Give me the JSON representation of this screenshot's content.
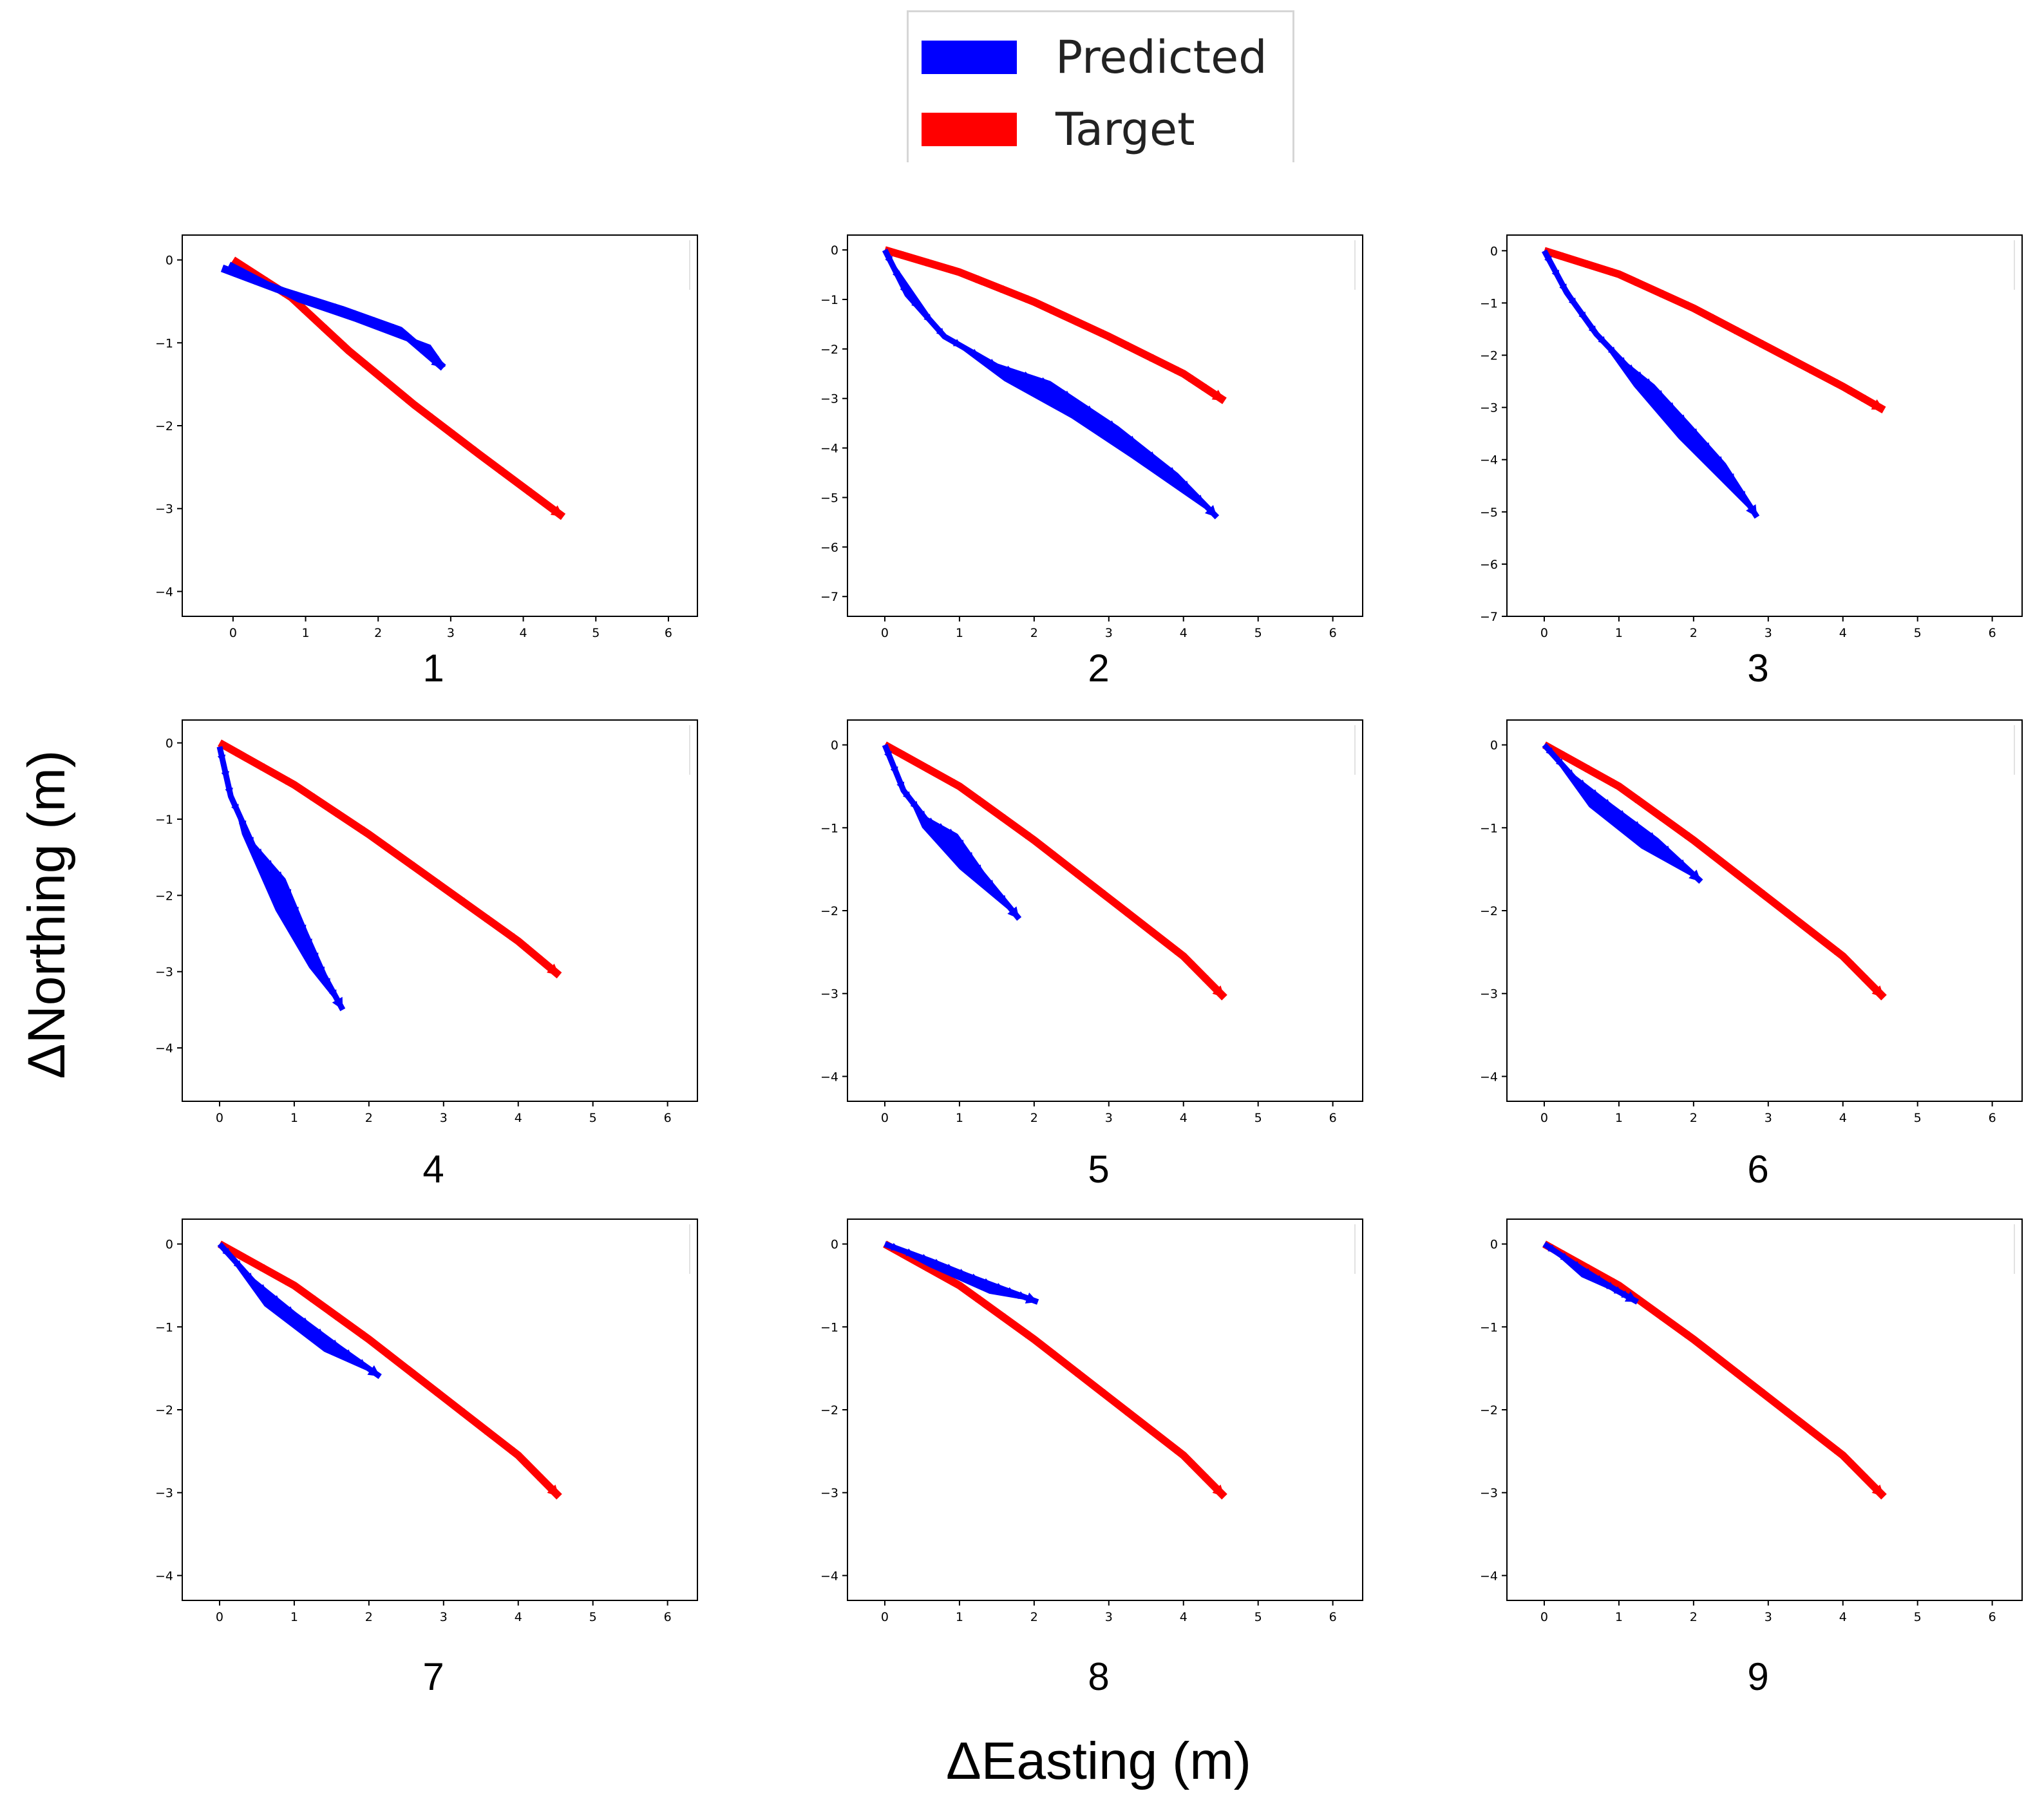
{
  "legend": {
    "items": [
      {
        "label": "Predicted",
        "color": "#0000ff"
      },
      {
        "label": "Target",
        "color": "#ff0000"
      }
    ]
  },
  "figure": {
    "xlabel": "ΔEasting (m)",
    "ylabel": "ΔNorthing (m)"
  },
  "chart_data": [
    {
      "type": "quiver",
      "panel_label": "1",
      "xlim": [
        -0.7,
        6.4
      ],
      "ylim": [
        -4.3,
        0.3
      ],
      "xticks": [
        0,
        1,
        2,
        3,
        4,
        5,
        6
      ],
      "yticks": [
        0,
        -1,
        -2,
        -3,
        -4
      ],
      "series": [
        {
          "name": "Target",
          "color": "#ff0000",
          "points": [
            [
              0,
              0
            ],
            [
              0.8,
              -0.45
            ],
            [
              1.6,
              -1.1
            ],
            [
              2.5,
              -1.75
            ],
            [
              3.4,
              -2.35
            ],
            [
              4.55,
              -3.1
            ]
          ]
        },
        {
          "name": "Predicted",
          "color": "#0000ff",
          "points": [
            [
              -0.15,
              -0.1
            ],
            [
              0.7,
              -0.38
            ],
            [
              1.5,
              -0.6
            ],
            [
              2.3,
              -0.85
            ],
            [
              2.9,
              -1.3
            ]
          ],
          "return_points": [
            [
              2.7,
              -1.05
            ],
            [
              1.7,
              -0.72
            ],
            [
              0.9,
              -0.48
            ],
            [
              -0.05,
              -0.05
            ]
          ]
        }
      ]
    },
    {
      "type": "quiver",
      "panel_label": "2",
      "xlim": [
        -0.5,
        6.4
      ],
      "ylim": [
        -7.4,
        0.3
      ],
      "xticks": [
        0,
        1,
        2,
        3,
        4,
        5,
        6
      ],
      "yticks": [
        0,
        -1,
        -2,
        -3,
        -4,
        -5,
        -6,
        -7
      ],
      "series": [
        {
          "name": "Target",
          "color": "#ff0000",
          "points": [
            [
              0,
              0
            ],
            [
              1,
              -0.45
            ],
            [
              2,
              -1.05
            ],
            [
              3,
              -1.75
            ],
            [
              4,
              -2.5
            ],
            [
              4.55,
              -3.05
            ]
          ]
        },
        {
          "name": "Predicted",
          "color": "#0000ff",
          "points": [
            [
              0,
              0
            ],
            [
              0.3,
              -0.9
            ],
            [
              0.8,
              -1.75
            ],
            [
              1.5,
              -2.35
            ],
            [
              2.2,
              -2.7
            ],
            [
              3.1,
              -3.6
            ],
            [
              3.9,
              -4.55
            ],
            [
              4.45,
              -5.4
            ]
          ],
          "lower_edge": [
            [
              0.8,
              -1.75
            ],
            [
              1.6,
              -2.65
            ],
            [
              2.5,
              -3.4
            ],
            [
              3.3,
              -4.2
            ],
            [
              4.45,
              -5.4
            ]
          ]
        }
      ]
    },
    {
      "type": "quiver",
      "panel_label": "3",
      "xlim": [
        -0.5,
        6.4
      ],
      "ylim": [
        -7.0,
        0.3
      ],
      "xticks": [
        0,
        1,
        2,
        3,
        4,
        5,
        6
      ],
      "yticks": [
        0,
        -1,
        -2,
        -3,
        -4,
        -5,
        -6,
        -7
      ],
      "series": [
        {
          "name": "Target",
          "color": "#ff0000",
          "points": [
            [
              0,
              0
            ],
            [
              1,
              -0.45
            ],
            [
              2,
              -1.1
            ],
            [
              3,
              -1.85
            ],
            [
              4,
              -2.6
            ],
            [
              4.55,
              -3.05
            ]
          ]
        },
        {
          "name": "Predicted",
          "color": "#0000ff",
          "points": [
            [
              0,
              0
            ],
            [
              0.3,
              -0.8
            ],
            [
              0.7,
              -1.6
            ],
            [
              1.1,
              -2.2
            ],
            [
              1.45,
              -2.6
            ],
            [
              1.9,
              -3.3
            ],
            [
              2.4,
              -4.1
            ],
            [
              2.85,
              -5.1
            ]
          ],
          "lower_edge": [
            [
              0.7,
              -1.6
            ],
            [
              1.2,
              -2.6
            ],
            [
              1.8,
              -3.6
            ],
            [
              2.85,
              -5.1
            ]
          ]
        }
      ]
    },
    {
      "type": "quiver",
      "panel_label": "4",
      "xlim": [
        -0.5,
        6.4
      ],
      "ylim": [
        -4.7,
        0.3
      ],
      "xticks": [
        0,
        1,
        2,
        3,
        4,
        5,
        6
      ],
      "yticks": [
        0,
        -1,
        -2,
        -3,
        -4
      ],
      "series": [
        {
          "name": "Target",
          "color": "#ff0000",
          "points": [
            [
              0,
              0
            ],
            [
              1,
              -0.55
            ],
            [
              2,
              -1.2
            ],
            [
              3,
              -1.9
            ],
            [
              4,
              -2.6
            ],
            [
              4.55,
              -3.05
            ]
          ]
        },
        {
          "name": "Predicted",
          "color": "#0000ff",
          "points": [
            [
              0,
              -0.05
            ],
            [
              0.15,
              -0.7
            ],
            [
              0.45,
              -1.35
            ],
            [
              0.85,
              -1.8
            ],
            [
              1.15,
              -2.5
            ],
            [
              1.4,
              -3.05
            ],
            [
              1.65,
              -3.5
            ]
          ],
          "lower_edge": [
            [
              0.3,
              -1.2
            ],
            [
              0.75,
              -2.2
            ],
            [
              1.2,
              -2.95
            ],
            [
              1.65,
              -3.5
            ]
          ]
        }
      ]
    },
    {
      "type": "quiver",
      "panel_label": "5",
      "xlim": [
        -0.5,
        6.4
      ],
      "ylim": [
        -4.3,
        0.3
      ],
      "xticks": [
        0,
        1,
        2,
        3,
        4,
        5,
        6
      ],
      "yticks": [
        0,
        -1,
        -2,
        -3,
        -4
      ],
      "series": [
        {
          "name": "Target",
          "color": "#ff0000",
          "points": [
            [
              0,
              0
            ],
            [
              1,
              -0.5
            ],
            [
              2,
              -1.15
            ],
            [
              3,
              -1.85
            ],
            [
              4,
              -2.55
            ],
            [
              4.55,
              -3.05
            ]
          ]
        },
        {
          "name": "Predicted",
          "color": "#0000ff",
          "points": [
            [
              0,
              0
            ],
            [
              0.25,
              -0.55
            ],
            [
              0.55,
              -0.9
            ],
            [
              0.95,
              -1.1
            ],
            [
              1.3,
              -1.55
            ],
            [
              1.8,
              -2.1
            ]
          ],
          "lower_edge": [
            [
              0.5,
              -1.0
            ],
            [
              1.0,
              -1.5
            ],
            [
              1.8,
              -2.1
            ]
          ]
        }
      ]
    },
    {
      "type": "quiver",
      "panel_label": "6",
      "xlim": [
        -0.5,
        6.4
      ],
      "ylim": [
        -4.3,
        0.3
      ],
      "xticks": [
        0,
        1,
        2,
        3,
        4,
        5,
        6
      ],
      "yticks": [
        0,
        -1,
        -2,
        -3,
        -4
      ],
      "series": [
        {
          "name": "Target",
          "color": "#ff0000",
          "points": [
            [
              0,
              0
            ],
            [
              1,
              -0.5
            ],
            [
              2,
              -1.15
            ],
            [
              3,
              -1.85
            ],
            [
              4,
              -2.55
            ],
            [
              4.55,
              -3.05
            ]
          ]
        },
        {
          "name": "Predicted",
          "color": "#0000ff",
          "points": [
            [
              0,
              0
            ],
            [
              0.4,
              -0.4
            ],
            [
              0.9,
              -0.75
            ],
            [
              1.5,
              -1.15
            ],
            [
              2.1,
              -1.65
            ]
          ],
          "lower_edge": [
            [
              0.6,
              -0.75
            ],
            [
              1.3,
              -1.25
            ],
            [
              2.1,
              -1.65
            ]
          ]
        }
      ]
    },
    {
      "type": "quiver",
      "panel_label": "7",
      "xlim": [
        -0.5,
        6.4
      ],
      "ylim": [
        -4.3,
        0.3
      ],
      "xticks": [
        0,
        1,
        2,
        3,
        4,
        5,
        6
      ],
      "yticks": [
        0,
        -1,
        -2,
        -3,
        -4
      ],
      "series": [
        {
          "name": "Target",
          "color": "#ff0000",
          "points": [
            [
              0,
              0
            ],
            [
              1,
              -0.5
            ],
            [
              2,
              -1.15
            ],
            [
              3,
              -1.85
            ],
            [
              4,
              -2.55
            ],
            [
              4.55,
              -3.05
            ]
          ]
        },
        {
          "name": "Predicted",
          "color": "#0000ff",
          "points": [
            [
              0,
              0
            ],
            [
              0.45,
              -0.45
            ],
            [
              1.0,
              -0.85
            ],
            [
              1.6,
              -1.25
            ],
            [
              2.15,
              -1.6
            ]
          ],
          "lower_edge": [
            [
              0.6,
              -0.75
            ],
            [
              1.4,
              -1.3
            ],
            [
              2.15,
              -1.6
            ]
          ]
        }
      ]
    },
    {
      "type": "quiver",
      "panel_label": "8",
      "xlim": [
        -0.5,
        6.4
      ],
      "ylim": [
        -4.3,
        0.3
      ],
      "xticks": [
        0,
        1,
        2,
        3,
        4,
        5,
        6
      ],
      "yticks": [
        0,
        -1,
        -2,
        -3,
        -4
      ],
      "series": [
        {
          "name": "Target",
          "color": "#ff0000",
          "points": [
            [
              0,
              0
            ],
            [
              1,
              -0.5
            ],
            [
              2,
              -1.15
            ],
            [
              3,
              -1.85
            ],
            [
              4,
              -2.55
            ],
            [
              4.55,
              -3.05
            ]
          ]
        },
        {
          "name": "Predicted",
          "color": "#0000ff",
          "points": [
            [
              0,
              0
            ],
            [
              0.6,
              -0.2
            ],
            [
              1.1,
              -0.38
            ],
            [
              1.6,
              -0.55
            ],
            [
              2.05,
              -0.7
            ]
          ],
          "lower_edge": [
            [
              0.6,
              -0.28
            ],
            [
              1.4,
              -0.6
            ],
            [
              2.05,
              -0.7
            ]
          ]
        }
      ]
    },
    {
      "type": "quiver",
      "panel_label": "9",
      "xlim": [
        -0.5,
        6.4
      ],
      "ylim": [
        -4.3,
        0.3
      ],
      "xticks": [
        0,
        1,
        2,
        3,
        4,
        5,
        6
      ],
      "yticks": [
        0,
        -1,
        -2,
        -3,
        -4
      ],
      "series": [
        {
          "name": "Target",
          "color": "#ff0000",
          "points": [
            [
              0,
              0
            ],
            [
              1,
              -0.5
            ],
            [
              2,
              -1.15
            ],
            [
              3,
              -1.85
            ],
            [
              4,
              -2.55
            ],
            [
              4.55,
              -3.05
            ]
          ]
        },
        {
          "name": "Predicted",
          "color": "#0000ff",
          "points": [
            [
              0,
              0
            ],
            [
              0.5,
              -0.3
            ],
            [
              0.95,
              -0.55
            ],
            [
              1.25,
              -0.7
            ]
          ],
          "lower_edge": [
            [
              0.5,
              -0.4
            ],
            [
              1.25,
              -0.7
            ]
          ]
        }
      ]
    }
  ]
}
